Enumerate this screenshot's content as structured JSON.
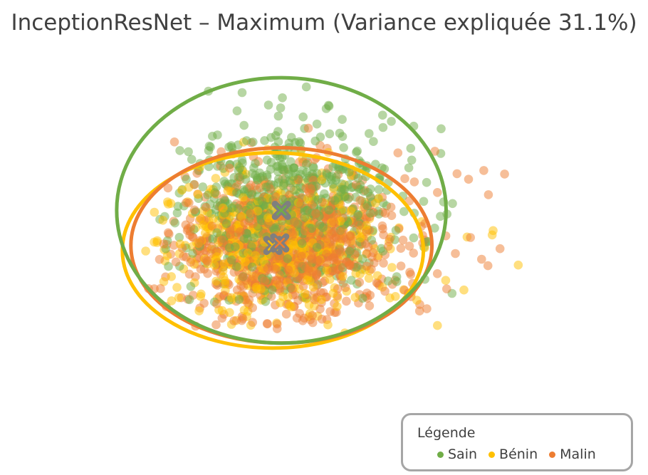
{
  "chart_data": {
    "type": "scatter",
    "title": "InceptionResNet – Maximum (Variance expliquée 31.1%)",
    "xlabel": "",
    "ylabel": "",
    "xlim": [
      -3.2,
      5.2
    ],
    "ylim": [
      -3.2,
      3.2
    ],
    "grid": false,
    "axes_visible": false,
    "legend": {
      "title": "Légende",
      "placement": "bottom-right"
    },
    "series": [
      {
        "name": "Sain",
        "color": "#70AD47",
        "centroid": [
          0.25,
          0.35
        ],
        "confidence_ellipse": {
          "center": [
            0.25,
            0.35
          ],
          "rx": 2.9,
          "ry": 2.65
        },
        "cloud": {
          "n": 650,
          "center": [
            0.2,
            0.35
          ],
          "spread": [
            0.95,
            0.85
          ],
          "x_range": [
            -1.9,
            3.9
          ],
          "y_range": [
            -1.6,
            2.9
          ]
        }
      },
      {
        "name": "Bénin",
        "color": "#FFC000",
        "centroid": [
          0.1,
          -0.35
        ],
        "confidence_ellipse": {
          "center": [
            0.1,
            -0.45
          ],
          "rx": 2.65,
          "ry": 1.95
        },
        "cloud": {
          "n": 500,
          "center": [
            0.1,
            -0.3
          ],
          "spread": [
            0.9,
            0.7
          ],
          "x_range": [
            -2.2,
            4.5
          ],
          "y_range": [
            -2.1,
            1.8
          ]
        }
      },
      {
        "name": "Malin",
        "color": "#ED7D31",
        "centroid": [
          0.22,
          -0.3
        ],
        "confidence_ellipse": {
          "center": [
            0.25,
            -0.35
          ],
          "rx": 2.65,
          "ry": 1.95
        },
        "cloud": {
          "n": 900,
          "center": [
            0.2,
            -0.35
          ],
          "spread": [
            0.9,
            0.72
          ],
          "x_range": [
            -2.1,
            4.7
          ],
          "y_range": [
            -2.1,
            2.2
          ]
        }
      }
    ]
  }
}
